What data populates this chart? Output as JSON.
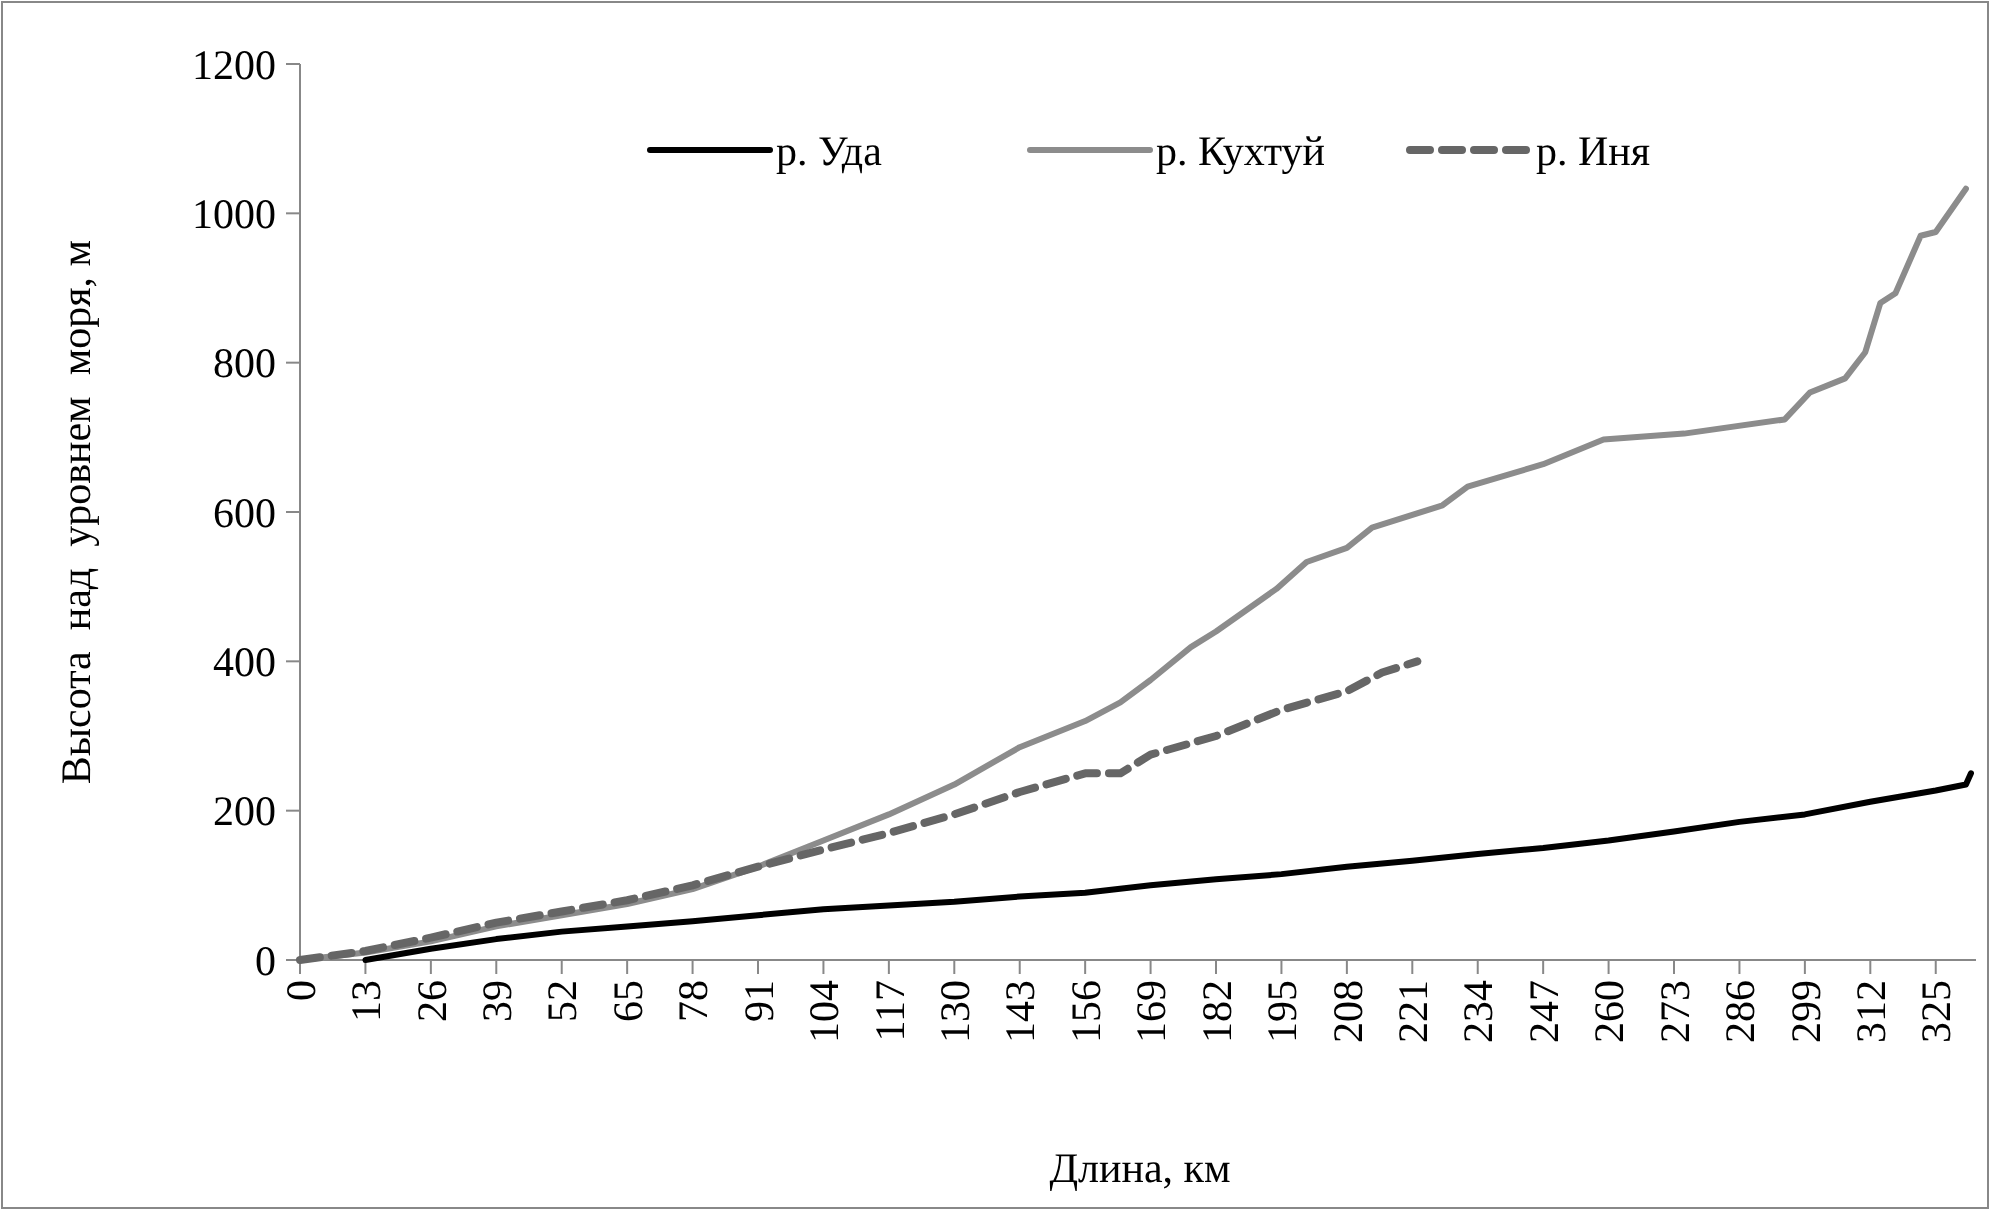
{
  "chart_data": {
    "type": "line",
    "xlabel": "Длина, км",
    "ylabel": "Высота  над  уровнем  моря, м",
    "xlim": [
      0,
      333
    ],
    "xticks": [
      0,
      13,
      26,
      39,
      52,
      65,
      78,
      91,
      104,
      117,
      130,
      143,
      156,
      169,
      182,
      195,
      208,
      221,
      234,
      247,
      260,
      273,
      286,
      299,
      312,
      325
    ],
    "ylim": [
      0,
      1200
    ],
    "yticks": [
      0,
      200,
      400,
      600,
      800,
      1000,
      1200
    ],
    "grid": false,
    "legend": "top",
    "line_style": "solid",
    "series": [
      {
        "name": "р. Уда",
        "color": "#000000",
        "x": [
          13,
          26,
          39,
          52,
          65,
          78,
          91,
          104,
          117,
          130,
          143,
          156,
          169,
          182,
          195,
          208,
          221,
          234,
          247,
          260,
          273,
          286,
          299,
          312,
          325,
          331,
          332
        ],
        "values": [
          0,
          15,
          28,
          38,
          45,
          52,
          60,
          68,
          73,
          78,
          85,
          90,
          100,
          108,
          115,
          125,
          133,
          142,
          150,
          160,
          172,
          185,
          195,
          212,
          227,
          235,
          250
        ]
      },
      {
        "name": "р. Кухтуй",
        "color": "#8c8c8c",
        "x": [
          0,
          13,
          26,
          39,
          52,
          65,
          78,
          91,
          104,
          117,
          130,
          143,
          156,
          163,
          169,
          177,
          182,
          194,
          200,
          208,
          213,
          227,
          232,
          247,
          259,
          275,
          295,
          300,
          307,
          311,
          314,
          317,
          322,
          325,
          331
        ],
        "values": [
          0,
          10,
          25,
          45,
          60,
          75,
          95,
          125,
          160,
          195,
          235,
          285,
          320,
          345,
          375,
          419,
          440,
          497,
          533,
          552,
          579,
          609,
          634,
          664,
          697,
          705,
          724,
          760,
          779,
          814,
          880,
          893,
          970,
          975,
          1033
        ]
      },
      {
        "name": "р. Иня",
        "color": "#666666",
        "line_style": "dashed",
        "x": [
          0,
          13,
          26,
          39,
          52,
          65,
          78,
          91,
          104,
          117,
          130,
          143,
          156,
          163,
          169,
          182,
          195,
          208,
          215,
          222
        ],
        "values": [
          0,
          12,
          30,
          50,
          65,
          80,
          100,
          125,
          148,
          170,
          195,
          225,
          250,
          250,
          275,
          300,
          335,
          360,
          385,
          400
        ]
      }
    ]
  }
}
